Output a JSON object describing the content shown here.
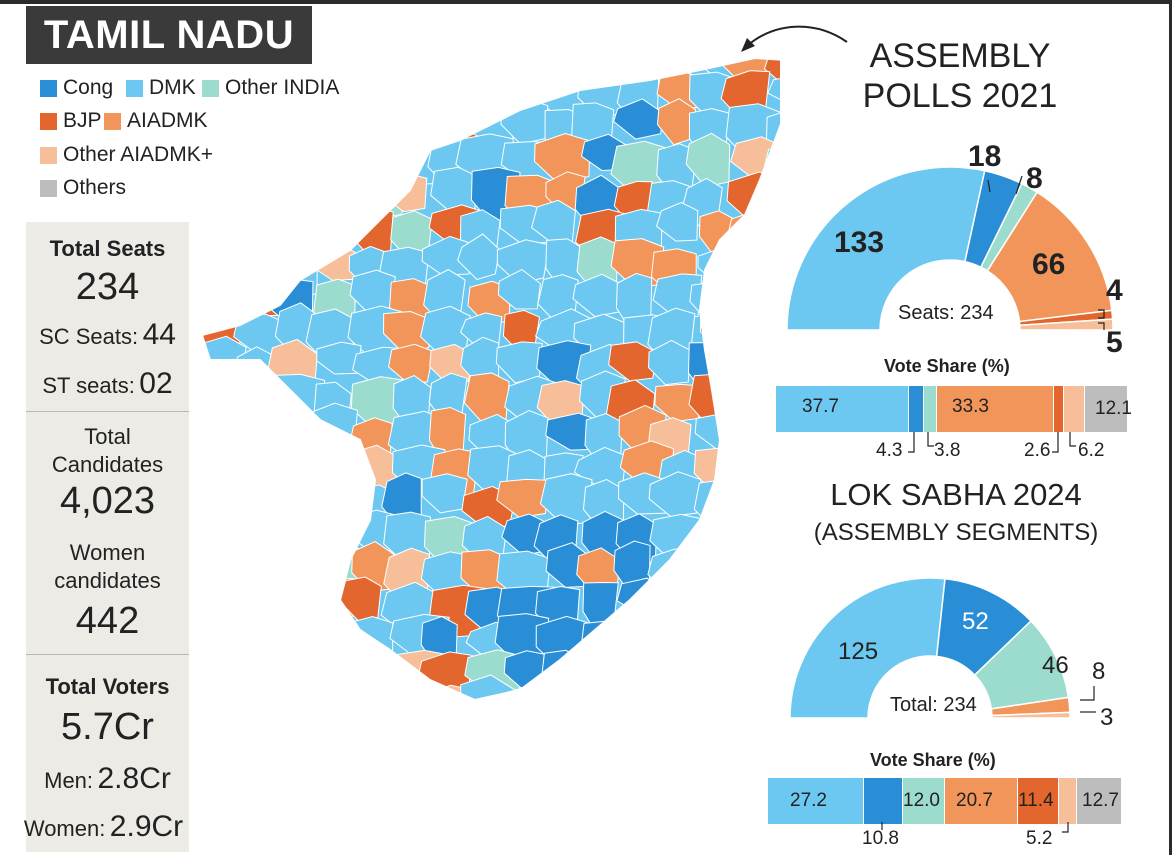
{
  "header": {
    "title": "TAMIL NADU"
  },
  "legend": [
    {
      "label": "Cong",
      "color": "#2a8ed6"
    },
    {
      "label": "DMK",
      "color": "#6cc8f0"
    },
    {
      "label": "Other INDIA",
      "color": "#9cdccf"
    },
    {
      "label": "BJP",
      "color": "#e2662d"
    },
    {
      "label": "AIADMK",
      "color": "#f2955a"
    },
    {
      "label": "Other AIADMK+",
      "color": "#f6be99"
    },
    {
      "label": "Others",
      "color": "#bdbdbd"
    }
  ],
  "stats": {
    "total_seats_label": "Total Seats",
    "total_seats": "234",
    "sc_label": "SC Seats:",
    "sc_value": "44",
    "st_label": "ST seats:",
    "st_value": "02",
    "candidates_label_1": "Total",
    "candidates_label_2": "Candidates",
    "candidates_value": "4,023",
    "women_cand_label_1": "Women",
    "women_cand_label_2": "candidates",
    "women_cand_value": "442",
    "voters_label": "Total  Voters",
    "voters_value": "5.7Cr",
    "men_label": "Men:",
    "men_value": "2.8Cr",
    "women_label": "Women:",
    "women_value": "2.9Cr"
  },
  "assembly": {
    "title_line1": "ASSEMBLY",
    "title_line2": "POLLS 2021",
    "center_label": "Seats: 234",
    "vote_share_title": "Vote Share (%)"
  },
  "lok_sabha": {
    "title_line1": "LOK SABHA 2024",
    "title_line2": "(ASSEMBLY SEGMENTS)",
    "center_label": "Total: 234",
    "vote_share_title": "Vote Share (%)"
  },
  "chart_data": [
    {
      "type": "pie",
      "name": "ASSEMBLY POLLS 2021 - Seats",
      "categories": [
        "DMK",
        "Cong",
        "Other INDIA",
        "AIADMK",
        "BJP",
        "Other AIADMK+"
      ],
      "values": [
        133,
        18,
        8,
        66,
        4,
        5
      ],
      "labels": [
        "133",
        "18",
        "8",
        "66",
        "4",
        "5"
      ],
      "total": 234,
      "colors": [
        "#6cc8f0",
        "#2a8ed6",
        "#9cdccf",
        "#f2955a",
        "#e2662d",
        "#f6be99"
      ]
    },
    {
      "type": "bar",
      "name": "ASSEMBLY POLLS 2021 - Vote Share (%)",
      "categories": [
        "DMK",
        "Cong",
        "Other INDIA",
        "AIADMK",
        "BJP",
        "Other AIADMK+",
        "Others"
      ],
      "values": [
        37.7,
        4.3,
        3.8,
        33.3,
        2.6,
        6.2,
        12.1
      ],
      "labels": [
        "37.7",
        "4.3",
        "3.8",
        "33.3",
        "2.6",
        "6.2",
        "12.1"
      ],
      "colors": [
        "#6cc8f0",
        "#2a8ed6",
        "#9cdccf",
        "#f2955a",
        "#e2662d",
        "#f6be99",
        "#bdbdbd"
      ]
    },
    {
      "type": "pie",
      "name": "LOK SABHA 2024 (ASSEMBLY SEGMENTS) - Seats",
      "categories": [
        "DMK",
        "Cong",
        "Other INDIA",
        "AIADMK",
        "Other AIADMK+"
      ],
      "values": [
        125,
        52,
        46,
        8,
        3
      ],
      "labels": [
        "125",
        "52",
        "46",
        "8",
        "3"
      ],
      "total": 234,
      "colors": [
        "#6cc8f0",
        "#2a8ed6",
        "#9cdccf",
        "#f2955a",
        "#f6be99"
      ]
    },
    {
      "type": "bar",
      "name": "LOK SABHA 2024 - Vote Share (%)",
      "categories": [
        "DMK",
        "Cong",
        "Other INDIA",
        "AIADMK",
        "BJP",
        "Other AIADMK+",
        "Others"
      ],
      "values": [
        27.2,
        10.8,
        12.0,
        20.7,
        11.4,
        5.2,
        12.7
      ],
      "labels": [
        "27.2",
        "10.8",
        "12.0",
        "20.7",
        "11.4",
        "5.2",
        "12.7"
      ],
      "colors": [
        "#6cc8f0",
        "#2a8ed6",
        "#9cdccf",
        "#f2955a",
        "#e2662d",
        "#f6be99",
        "#bdbdbd"
      ]
    }
  ]
}
